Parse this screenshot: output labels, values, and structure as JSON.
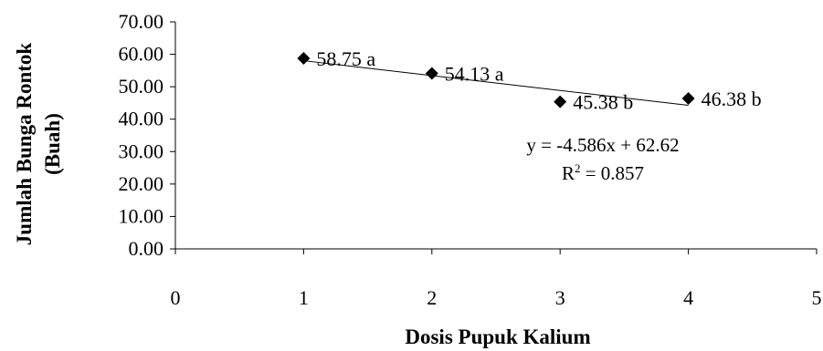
{
  "chart_data": {
    "type": "scatter",
    "xlabel": "Dosis Pupuk Kalium",
    "ylabel_line1": "Jumlah Bunga Rontok",
    "ylabel_line2": "(Buah)",
    "xlim": [
      0,
      5
    ],
    "ylim": [
      0,
      70
    ],
    "x_ticks": [
      "0",
      "1",
      "2",
      "3",
      "4",
      "5"
    ],
    "y_ticks": [
      "0.00",
      "10.00",
      "20.00",
      "30.00",
      "40.00",
      "50.00",
      "60.00",
      "70.00"
    ],
    "grid": false,
    "series": [
      {
        "x": [
          1,
          2,
          3,
          4
        ],
        "y": [
          58.75,
          54.13,
          45.38,
          46.38
        ],
        "labels": [
          "58.75 a",
          "54.13 a",
          "45.38 b",
          "46.38 b"
        ],
        "marker": "diamond",
        "color": "#000000"
      }
    ],
    "trendline": {
      "slope": -4.586,
      "intercept": 62.62,
      "x_range": [
        1,
        4
      ],
      "equation": "y = -4.586x + 62.62",
      "r2_prefix": "R",
      "r2_sup": "2",
      "r2_rest": " = 0.857"
    }
  }
}
